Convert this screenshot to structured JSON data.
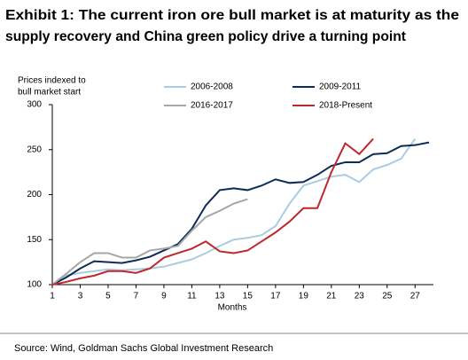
{
  "chart_data": {
    "type": "line",
    "title": [
      "Exhibit 1: The current iron ore bull market is at maturity as the",
      "supply recovery and China green policy drive a turning point"
    ],
    "ylabel": [
      "Prices indexed to",
      "bull market start"
    ],
    "xlabel": "Months",
    "source": "Source: Wind, Goldman Sachs Global Investment Research",
    "x": [
      1,
      2,
      3,
      4,
      5,
      6,
      7,
      8,
      9,
      10,
      11,
      12,
      13,
      14,
      15,
      16,
      17,
      18,
      19,
      20,
      21,
      22,
      23,
      24,
      25,
      26,
      27,
      28
    ],
    "xlim": [
      1,
      28
    ],
    "xticks": [
      1,
      3,
      5,
      7,
      9,
      11,
      13,
      15,
      17,
      19,
      21,
      23,
      25,
      27
    ],
    "ylim": [
      100,
      300
    ],
    "yticks": [
      100,
      150,
      200,
      250,
      300
    ],
    "grid": false,
    "series": [
      {
        "name": "2006-2008",
        "color": "#a9cce3",
        "values": [
          100,
          110,
          113,
          115,
          117,
          116,
          117,
          118,
          120,
          124,
          128,
          135,
          143,
          150,
          152,
          155,
          165,
          190,
          210,
          215,
          220,
          222,
          214,
          228,
          233,
          240,
          262,
          null
        ]
      },
      {
        "name": "2009-2011",
        "color": "#0c2d57",
        "values": [
          100,
          108,
          118,
          126,
          125,
          124,
          127,
          131,
          138,
          145,
          162,
          188,
          205,
          207,
          205,
          210,
          217,
          213,
          214,
          222,
          232,
          236,
          236,
          245,
          246,
          254,
          255,
          258
        ]
      },
      {
        "name": "2016-2017",
        "color": "#a6a6a6",
        "values": [
          100,
          112,
          125,
          135,
          135,
          130,
          130,
          138,
          140,
          143,
          160,
          175,
          182,
          190,
          195,
          null,
          null,
          null,
          null,
          null,
          null,
          null,
          null,
          null,
          null,
          null,
          null,
          null
        ]
      },
      {
        "name": "2018-Present",
        "color": "#c0272d",
        "values": [
          100,
          103,
          107,
          110,
          115,
          115,
          113,
          118,
          130,
          135,
          140,
          148,
          137,
          135,
          138,
          148,
          158,
          170,
          185,
          185,
          225,
          257,
          245,
          262,
          null,
          null,
          null,
          null
        ]
      }
    ]
  }
}
